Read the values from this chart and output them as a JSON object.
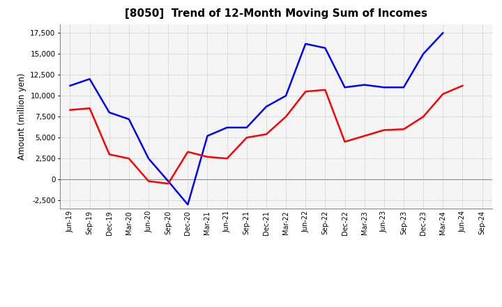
{
  "title": "[8050]  Trend of 12-Month Moving Sum of Incomes",
  "ylabel": "Amount (million yen)",
  "background_color": "#ffffff",
  "plot_bg_color": "#f5f5f5",
  "grid_color": "#aaaaaa",
  "x_labels": [
    "Jun-19",
    "Sep-19",
    "Dec-19",
    "Mar-20",
    "Jun-20",
    "Sep-20",
    "Dec-20",
    "Mar-21",
    "Jun-21",
    "Sep-21",
    "Dec-21",
    "Mar-22",
    "Jun-22",
    "Sep-22",
    "Dec-22",
    "Mar-23",
    "Jun-23",
    "Sep-23",
    "Dec-23",
    "Mar-24",
    "Jun-24",
    "Sep-24"
  ],
  "ordinary_income": [
    11200,
    12000,
    8000,
    7200,
    2500,
    -200,
    -3000,
    5200,
    6200,
    6200,
    8700,
    10000,
    16200,
    15700,
    11000,
    11300,
    11000,
    11000,
    15000,
    17500,
    null,
    null
  ],
  "net_income": [
    8300,
    8500,
    3000,
    2500,
    -200,
    -500,
    3300,
    2700,
    2500,
    5000,
    5400,
    7500,
    10500,
    10700,
    4500,
    5200,
    5900,
    6000,
    7500,
    10200,
    11200,
    null
  ],
  "ylim": [
    -3500,
    18500
  ],
  "yticks": [
    -2500,
    0,
    2500,
    5000,
    7500,
    10000,
    12500,
    15000,
    17500
  ],
  "ordinary_color": "#0000ff",
  "net_color": "#ff0000",
  "line_width": 1.8
}
